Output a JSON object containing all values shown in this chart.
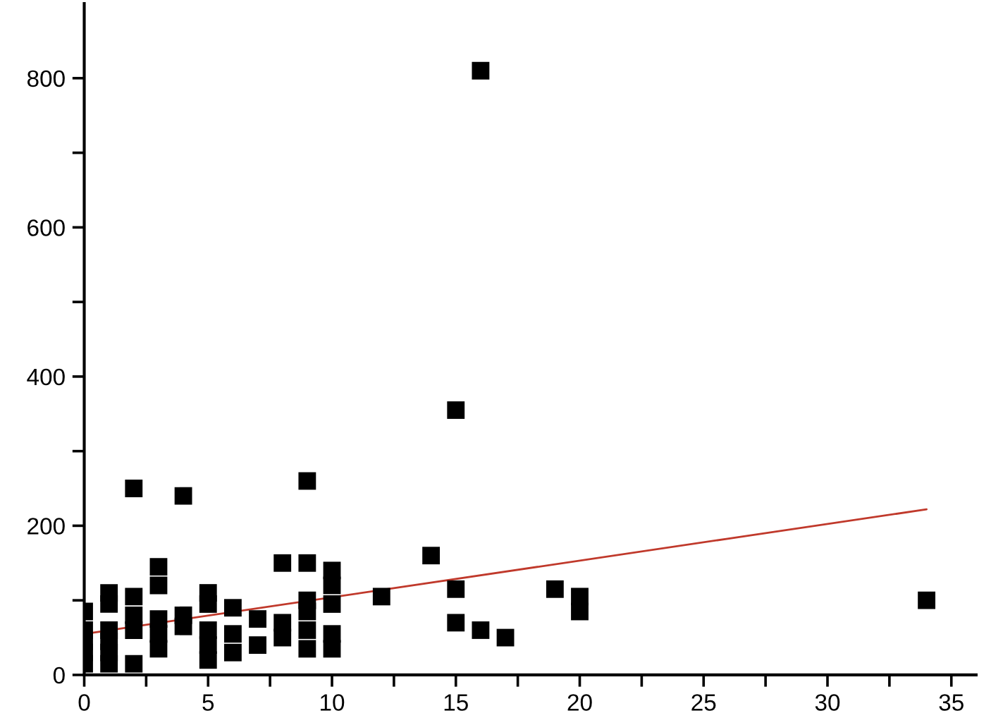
{
  "chart_data": {
    "type": "scatter",
    "xlim": [
      0,
      36
    ],
    "ylim": [
      0,
      900
    ],
    "xticks": [
      0,
      {
        "value": 2.5,
        "label": null
      },
      5,
      {
        "value": 7.5,
        "label": null
      },
      10,
      {
        "value": 12.5,
        "label": null
      },
      15,
      {
        "value": 17.5,
        "label": null
      },
      20,
      {
        "value": 22.5,
        "label": null
      },
      25,
      {
        "value": 27.5,
        "label": null
      },
      30,
      {
        "value": 32.5,
        "label": null
      },
      35
    ],
    "yticks": [
      0,
      {
        "value": 100,
        "label": null
      },
      200,
      {
        "value": 300,
        "label": null
      },
      400,
      {
        "value": 500,
        "label": null
      },
      600,
      {
        "value": 700,
        "label": null
      },
      800
    ],
    "grid": false,
    "marker": "square",
    "series": [
      {
        "color": "#000000",
        "x": [
          0,
          0,
          0,
          0,
          0,
          1,
          1,
          1,
          1,
          1,
          1,
          2,
          2,
          2,
          2,
          2,
          3,
          3,
          3,
          3,
          3,
          4,
          4,
          4,
          5,
          5,
          5,
          5,
          5,
          6,
          6,
          6,
          7,
          7,
          8,
          8,
          8,
          9,
          9,
          9,
          9,
          9,
          9,
          10,
          10,
          10,
          10,
          10,
          12,
          14,
          15,
          15,
          15,
          16,
          16,
          17,
          19,
          20,
          20,
          34
        ],
        "values": [
          85,
          60,
          45,
          30,
          15,
          110,
          95,
          60,
          45,
          30,
          15,
          250,
          105,
          80,
          60,
          15,
          145,
          120,
          75,
          55,
          35,
          240,
          80,
          65,
          110,
          95,
          60,
          40,
          20,
          90,
          55,
          30,
          75,
          40,
          150,
          70,
          50,
          260,
          150,
          100,
          85,
          60,
          35,
          140,
          120,
          95,
          55,
          35,
          105,
          160,
          355,
          115,
          70,
          810,
          60,
          50,
          115,
          105,
          85,
          100
        ]
      },
      {
        "type": "line",
        "color": "#c0392b",
        "marker": "none",
        "x": [
          0,
          34
        ],
        "values": [
          55,
          222
        ]
      }
    ]
  }
}
